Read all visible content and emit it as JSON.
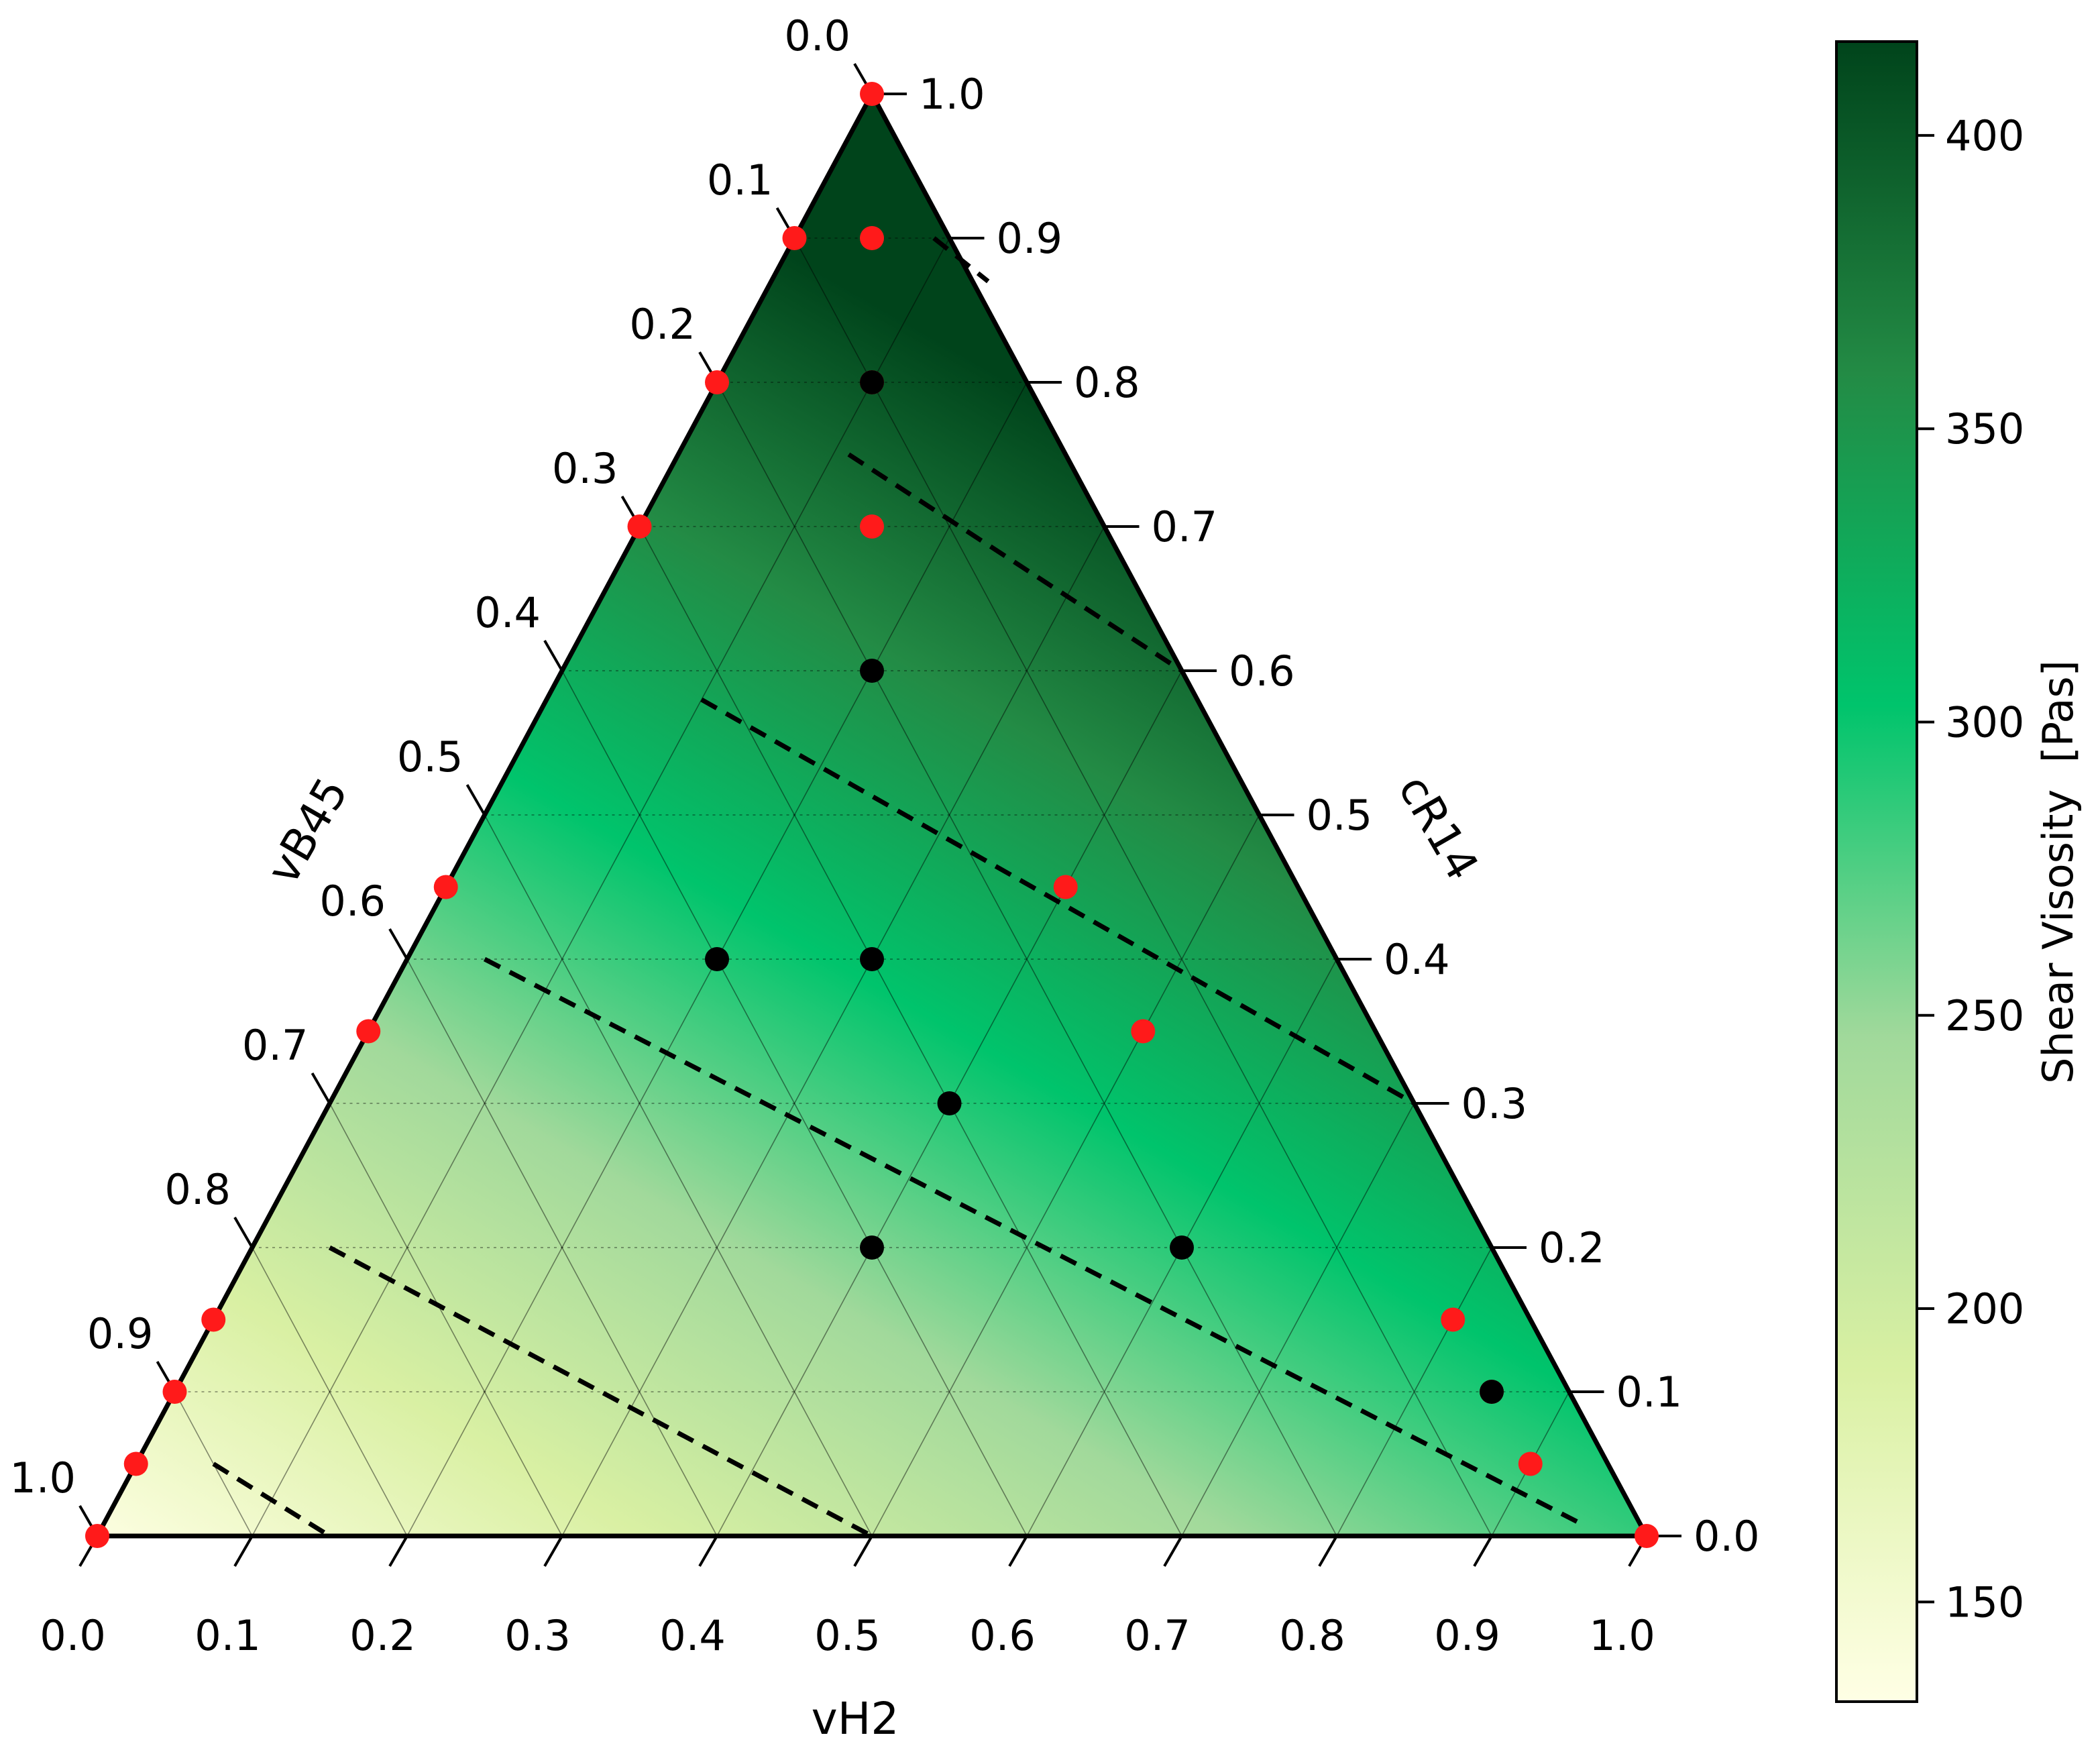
{
  "chart_data": {
    "type": "ternary-heatmap",
    "axes": {
      "bottom": {
        "label": "vH2",
        "ticks": [
          "0.0",
          "0.1",
          "0.2",
          "0.3",
          "0.4",
          "0.5",
          "0.6",
          "0.7",
          "0.8",
          "0.9",
          "1.0"
        ]
      },
      "left": {
        "label": "vB45",
        "ticks": [
          "0.0",
          "0.1",
          "0.2",
          "0.3",
          "0.4",
          "0.5",
          "0.6",
          "0.7",
          "0.8",
          "0.9",
          "1.0"
        ]
      },
      "right": {
        "label": "cR14",
        "ticks": [
          "0.0",
          "0.1",
          "0.2",
          "0.3",
          "0.4",
          "0.5",
          "0.6",
          "0.7",
          "0.8",
          "0.9",
          "1.0"
        ]
      }
    },
    "grid": true,
    "colorbar": {
      "label": "Shear Visosity  [Pas]",
      "min": 133,
      "max": 416,
      "ticks": [
        150,
        200,
        250,
        300,
        350,
        400
      ],
      "colormap": [
        "#ffffe5",
        "#d9f0a3",
        "#a1d99b",
        "#00c46c",
        "#238b45",
        "#00441b"
      ]
    },
    "design_points_black": [
      {
        "vH2": 0.1,
        "cR14": 0.8
      },
      {
        "vH2": 0.2,
        "cR14": 0.6
      },
      {
        "vH2": 0.3,
        "cR14": 0.4
      },
      {
        "vH2": 0.2,
        "cR14": 0.4
      },
      {
        "vH2": 0.4,
        "cR14": 0.3
      },
      {
        "vH2": 0.4,
        "cR14": 0.2
      },
      {
        "vH2": 0.6,
        "cR14": 0.2
      },
      {
        "vH2": 0.85,
        "cR14": 0.1
      }
    ],
    "design_points_red": [
      {
        "vH2": 0.0,
        "cR14": 1.0
      },
      {
        "vH2": 0.0,
        "cR14": 0.9
      },
      {
        "vH2": 0.05,
        "cR14": 0.9
      },
      {
        "vH2": 0.0,
        "cR14": 0.8
      },
      {
        "vH2": 0.1,
        "cR14": 0.8
      },
      {
        "vH2": 0.0,
        "cR14": 0.7
      },
      {
        "vH2": 0.15,
        "cR14": 0.7
      },
      {
        "vH2": 0.0,
        "cR14": 0.45
      },
      {
        "vH2": 0.4,
        "cR14": 0.45
      },
      {
        "vH2": 0.0,
        "cR14": 0.35
      },
      {
        "vH2": 0.5,
        "cR14": 0.35
      },
      {
        "vH2": 0.0,
        "cR14": 0.15
      },
      {
        "vH2": 0.0,
        "cR14": 0.1
      },
      {
        "vH2": 0.0,
        "cR14": 0.05
      },
      {
        "vH2": 0.0,
        "cR14": 0.0
      },
      {
        "vH2": 0.8,
        "cR14": 0.15
      },
      {
        "vH2": 0.85,
        "cR14": 0.1
      },
      {
        "vH2": 0.9,
        "cR14": 0.05
      },
      {
        "vH2": 1.0,
        "cR14": 0.0
      }
    ],
    "contours": [
      {
        "a": {
          "vH2": 0.05,
          "cR14": 0.05
        },
        "b": {
          "vH2": 0.15,
          "cR14": 0.0
        }
      },
      {
        "a": {
          "vH2": 0.05,
          "cR14": 0.2
        },
        "b": {
          "vH2": 0.5,
          "cR14": 0.0
        }
      },
      {
        "a": {
          "vH2": 0.05,
          "cR14": 0.4
        },
        "b": {
          "vH2": 0.95,
          "cR14": 0.01
        }
      },
      {
        "a": {
          "vH2": 0.1,
          "cR14": 0.58
        },
        "b": {
          "vH2": 0.7,
          "cR14": 0.3
        }
      },
      {
        "a": {
          "vH2": 0.11,
          "cR14": 0.75
        },
        "b": {
          "vH2": 0.4,
          "cR14": 0.6
        }
      },
      {
        "a": {
          "vH2": 0.09,
          "cR14": 0.9
        },
        "b": {
          "vH2": 0.14,
          "cR14": 0.87
        }
      }
    ]
  }
}
